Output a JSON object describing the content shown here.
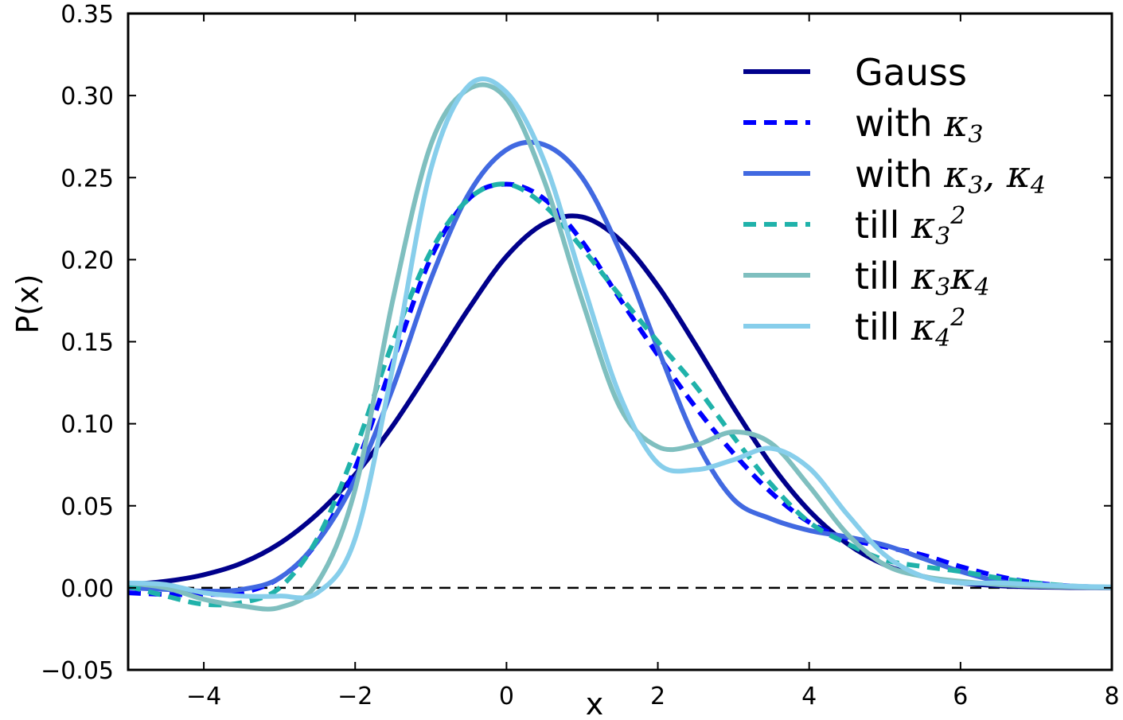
{
  "chart_data": {
    "type": "line",
    "title": "",
    "xlabel": "x",
    "ylabel": "P(x)",
    "xlim": [
      -5,
      8
    ],
    "ylim": [
      -0.05,
      0.35
    ],
    "xticks": [
      -4,
      -2,
      0,
      2,
      4,
      6,
      8
    ],
    "xtick_labels": [
      "−4",
      "−2",
      "0",
      "2",
      "4",
      "6",
      "8"
    ],
    "yticks": [
      -0.05,
      0.0,
      0.05,
      0.1,
      0.15,
      0.2,
      0.25,
      0.3,
      0.35
    ],
    "ytick_labels": [
      "−0.05",
      "0.00",
      "0.05",
      "0.10",
      "0.15",
      "0.20",
      "0.25",
      "0.30",
      "0.35"
    ],
    "grid": false,
    "legend_position": "top-right",
    "reference_line": {
      "y": 0,
      "style": "dashed",
      "color": "#000000"
    },
    "x": [
      -5,
      -4.5,
      -4,
      -3.5,
      -3,
      -2.5,
      -2,
      -1.5,
      -1,
      -0.5,
      0,
      0.5,
      1,
      1.5,
      2,
      2.5,
      3,
      3.5,
      4,
      4.5,
      5,
      5.5,
      6,
      6.5,
      7,
      7.5,
      8
    ],
    "series": [
      {
        "name": "Gauss",
        "label_parts": [
          {
            "t": "Gauss",
            "m": false
          }
        ],
        "color": "#00008B",
        "dash": "solid",
        "values": [
          0.002,
          0.004,
          0.008,
          0.015,
          0.027,
          0.045,
          0.069,
          0.099,
          0.134,
          0.17,
          0.202,
          0.222,
          0.226,
          0.212,
          0.184,
          0.148,
          0.11,
          0.075,
          0.047,
          0.027,
          0.014,
          0.007,
          0.003,
          0.0013,
          0.0005,
          0.0002,
          0.0001
        ]
      },
      {
        "name": "with κ3",
        "label_parts": [
          {
            "t": "with ",
            "m": false
          },
          {
            "t": "κ",
            "m": true
          },
          {
            "t": "3",
            "m": true,
            "sub": true
          }
        ],
        "color": "#0000FF",
        "dash": "dashed",
        "values": [
          -0.003,
          -0.004,
          -0.004,
          -0.003,
          0.006,
          0.028,
          0.073,
          0.138,
          0.201,
          0.237,
          0.246,
          0.237,
          0.211,
          0.176,
          0.142,
          0.11,
          0.082,
          0.058,
          0.04,
          0.03,
          0.025,
          0.02,
          0.013,
          0.007,
          0.003,
          0.001,
          0.0003
        ]
      },
      {
        "name": "with κ3, κ4",
        "label_parts": [
          {
            "t": "with ",
            "m": false
          },
          {
            "t": "κ",
            "m": true
          },
          {
            "t": "3",
            "m": true,
            "sub": true
          },
          {
            "t": ", κ",
            "m": true
          },
          {
            "t": "4",
            "m": true,
            "sub": true
          }
        ],
        "color": "#4169E1",
        "dash": "solid",
        "values": [
          0.0,
          -0.001,
          -0.002,
          -0.001,
          0.006,
          0.028,
          0.066,
          0.122,
          0.188,
          0.24,
          0.267,
          0.27,
          0.25,
          0.205,
          0.146,
          0.09,
          0.054,
          0.042,
          0.035,
          0.031,
          0.026,
          0.018,
          0.01,
          0.004,
          0.0015,
          0.0004,
          0.0001
        ]
      },
      {
        "name": "till κ3²",
        "label_parts": [
          {
            "t": "till ",
            "m": false
          },
          {
            "t": "κ",
            "m": true
          },
          {
            "t": "3",
            "m": true,
            "sub": true
          },
          {
            "t": "2",
            "m": true,
            "sup": true
          }
        ],
        "color": "#20B2AA",
        "dash": "dashed",
        "values": [
          0.001,
          -0.005,
          -0.01,
          -0.009,
          0.0,
          0.03,
          0.084,
          0.15,
          0.205,
          0.237,
          0.246,
          0.233,
          0.207,
          0.178,
          0.15,
          0.123,
          0.092,
          0.063,
          0.04,
          0.027,
          0.017,
          0.013,
          0.01,
          0.006,
          0.003,
          0.001,
          0.0004
        ]
      },
      {
        "name": "till κ3κ4",
        "label_parts": [
          {
            "t": "till ",
            "m": false
          },
          {
            "t": "κ",
            "m": true
          },
          {
            "t": "3",
            "m": true,
            "sub": true
          },
          {
            "t": "κ",
            "m": true
          },
          {
            "t": "4",
            "m": true,
            "sub": true
          }
        ],
        "color": "#7FBFBF",
        "dash": "solid",
        "values": [
          0.003,
          0.0,
          -0.007,
          -0.011,
          -0.012,
          0.003,
          0.06,
          0.176,
          0.27,
          0.304,
          0.298,
          0.248,
          0.175,
          0.11,
          0.086,
          0.087,
          0.095,
          0.088,
          0.062,
          0.033,
          0.014,
          0.007,
          0.004,
          0.002,
          0.001,
          0.0005,
          0.0002
        ]
      },
      {
        "name": "till κ4²",
        "label_parts": [
          {
            "t": "till ",
            "m": false
          },
          {
            "t": "κ",
            "m": true
          },
          {
            "t": "4",
            "m": true,
            "sub": true
          },
          {
            "t": "2",
            "m": true,
            "sup": true
          }
        ],
        "color": "#87CEEB",
        "dash": "solid",
        "values": [
          0.003,
          0.002,
          -0.003,
          -0.005,
          -0.005,
          -0.003,
          0.03,
          0.135,
          0.255,
          0.306,
          0.302,
          0.26,
          0.187,
          0.117,
          0.076,
          0.072,
          0.078,
          0.085,
          0.073,
          0.045,
          0.02,
          0.007,
          0.003,
          0.003,
          0.002,
          0.001,
          0.0005
        ]
      }
    ]
  }
}
